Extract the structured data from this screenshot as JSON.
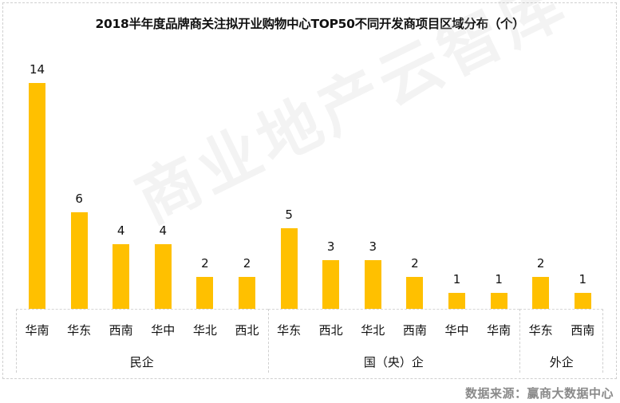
{
  "title": "2018半年度品牌商关注拟开业购物中心TOP50不同开发商项目区域分布（个）",
  "watermark": "商业地产云智库",
  "source": "数据来源：赢商大数据中心",
  "colors": {
    "bar": "#FFC000",
    "border": "#cfcfcf",
    "source_text": "#8a8a8a"
  },
  "chart_data": {
    "type": "bar",
    "title": "2018半年度品牌商关注拟开业购物中心TOP50不同开发商项目区域分布（个）",
    "xlabel": "",
    "ylabel": "",
    "ylim": [
      0,
      14
    ],
    "grid": false,
    "legend": null,
    "data_labels": true,
    "groups": [
      {
        "name": "民企",
        "categories": [
          "华南",
          "华东",
          "西南",
          "华中",
          "华北",
          "西北"
        ],
        "values": [
          14,
          6,
          4,
          4,
          2,
          2
        ]
      },
      {
        "name": "国（央）企",
        "categories": [
          "华东",
          "西北",
          "华北",
          "西南",
          "华中",
          "华南"
        ],
        "values": [
          5,
          3,
          3,
          2,
          1,
          1
        ]
      },
      {
        "name": "外企",
        "categories": [
          "华东",
          "西南"
        ],
        "values": [
          2,
          1
        ]
      }
    ],
    "categories": [
      "华南",
      "华东",
      "西南",
      "华中",
      "华北",
      "西北",
      "华东",
      "西北",
      "华北",
      "西南",
      "华中",
      "华南",
      "华东",
      "西南"
    ],
    "values": [
      14,
      6,
      4,
      4,
      2,
      2,
      5,
      3,
      3,
      2,
      1,
      1,
      2,
      1
    ]
  }
}
